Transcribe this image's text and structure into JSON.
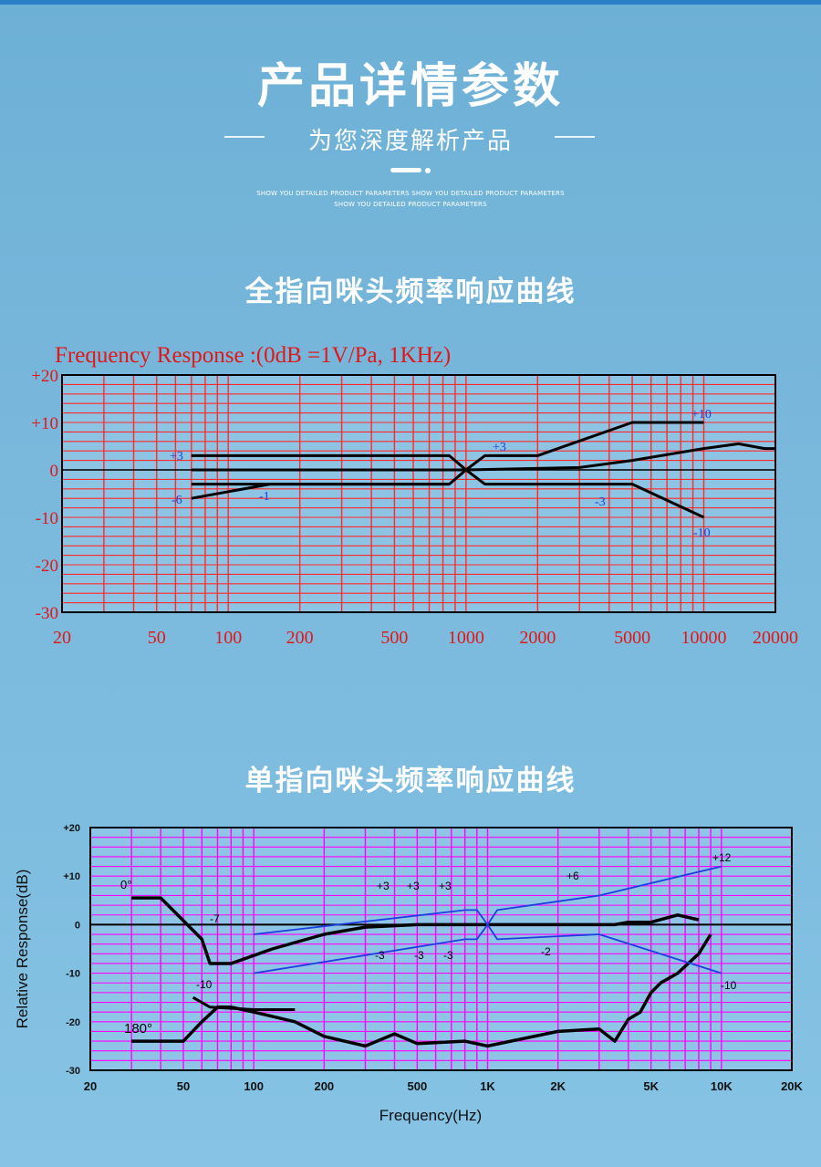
{
  "header": {
    "title": "产品详情参数",
    "subtitle": "为您深度解析产品",
    "english_line1": "SHOW YOU DETAILED PRODUCT PARAMETERS SHOW YOU DETAILED PRODUCT PARAMETERS",
    "english_line2": "SHOW YOU DETAILED PRODUCT PARAMETERS"
  },
  "sections": [
    {
      "title": "全指向咪头频率响应曲线"
    },
    {
      "title": "单指向咪头频率响应曲线"
    }
  ],
  "colors": {
    "chart1_grid": "#ff2b2b",
    "chart1_bg": "#8dc3e3",
    "chart2_grid": "#ff00ff",
    "chart2_bg": "#8ec5e6",
    "blue_series": "#1c3fe0",
    "black_series": "#000000"
  },
  "chart_data": [
    {
      "type": "line",
      "title": "Frequency  Response :(0dB =1V/Pa, 1KHz)",
      "xscale": "log",
      "xlim": [
        20,
        20000
      ],
      "ylim": [
        -30,
        20
      ],
      "x_ticks": [
        "20",
        "50",
        "100",
        "200",
        "500",
        "1000",
        "2000",
        "5000",
        "10000",
        "20000"
      ],
      "y_ticks": [
        "+20",
        "+10",
        "0",
        "-10",
        "-20",
        "-30"
      ],
      "grid": true,
      "annotations": [
        "+3",
        "-6",
        "-1",
        "+3",
        "-3",
        "+10",
        "-10"
      ],
      "series": [
        {
          "x": [
            70,
            850,
            1000,
            1200,
            2000,
            5000,
            10000
          ],
          "y": [
            3,
            3,
            0,
            3,
            3,
            10,
            10
          ]
        },
        {
          "x": [
            70,
            850,
            1000,
            1200,
            4500,
            5000,
            10000
          ],
          "y": [
            -3,
            -3,
            0,
            -3,
            -3,
            -3,
            -10
          ]
        },
        {
          "x": [
            70,
            500,
            1000,
            3000,
            5000,
            10000,
            14000,
            18000,
            20000
          ],
          "y": [
            0,
            0,
            0,
            0.5,
            2,
            4.5,
            5.5,
            4.5,
            4.5
          ]
        },
        {
          "x": [
            70,
            150,
            300,
            850
          ],
          "y": [
            -6,
            -3,
            -3,
            -3
          ]
        }
      ]
    },
    {
      "type": "line",
      "xlabel": "Frequency(Hz)",
      "ylabel": "Relative Response(dB)",
      "xscale": "log",
      "xlim": [
        20,
        20000
      ],
      "ylim": [
        -30,
        20
      ],
      "x_ticks": [
        "20",
        "50",
        "100",
        "200",
        "500",
        "1K",
        "2K",
        "5K",
        "10K",
        "20K"
      ],
      "y_ticks": [
        "+20",
        "+10",
        "0",
        "-10",
        "-20",
        "-30"
      ],
      "grid": true,
      "annotations": [
        "0°",
        "180°",
        "-7",
        "-10",
        "+3",
        "+3",
        "+3",
        "-3",
        "-3",
        "-3",
        "+6",
        "-2",
        "+12",
        "-10"
      ],
      "series": [
        {
          "name": "0°",
          "x": [
            30,
            40,
            60,
            65,
            80,
            120,
            200,
            300,
            500,
            800,
            1000,
            2000,
            3500,
            4000,
            5000,
            6500,
            8000
          ],
          "y": [
            5.5,
            5.5,
            -3,
            -8,
            -8,
            -5,
            -2,
            -0.5,
            0,
            0,
            0,
            0,
            0,
            0.5,
            0.5,
            2,
            1
          ]
        },
        {
          "name": "180°",
          "x": [
            30,
            50,
            60,
            70,
            80,
            100,
            150,
            200,
            300,
            400,
            500,
            800,
            1000,
            2000,
            3000,
            3500,
            4000,
            4500,
            5000,
            5500,
            6500,
            8000,
            9000
          ],
          "y": [
            -24,
            -24,
            -20,
            -17,
            -17,
            -18,
            -20,
            -23,
            -25,
            -22.5,
            -24.5,
            -24,
            -25,
            -22,
            -21.5,
            -24,
            -19.5,
            -18,
            -14,
            -12,
            -10,
            -6,
            -2
          ]
        },
        {
          "name": "",
          "x": [
            55,
            65,
            100,
            150
          ],
          "y": [
            -15,
            -17,
            -17.5,
            -17.5
          ]
        },
        {
          "name": "",
          "x": [
            100,
            800,
            900,
            1000,
            1100,
            3000,
            10000
          ],
          "y": [
            -2,
            3,
            3,
            0,
            3,
            6,
            12
          ]
        },
        {
          "name": "",
          "x": [
            100,
            800,
            900,
            1000,
            1100,
            3000,
            10000
          ],
          "y": [
            -10,
            -3,
            -3,
            0,
            -3,
            -2,
            -10
          ]
        }
      ]
    }
  ]
}
